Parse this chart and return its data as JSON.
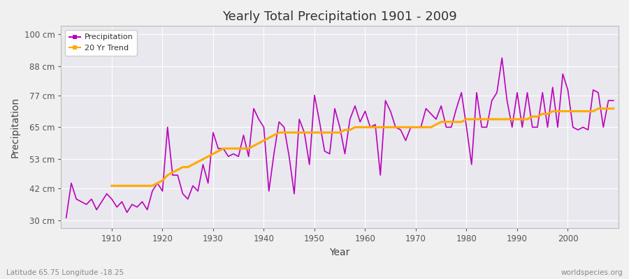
{
  "title": "Yearly Total Precipitation 1901 - 2009",
  "xlabel": "Year",
  "ylabel": "Precipitation",
  "subtitle_left": "Latitude 65.75 Longitude -18.25",
  "subtitle_right": "worldspecies.org",
  "ytick_labels": [
    "30 cm",
    "42 cm",
    "53 cm",
    "65 cm",
    "77 cm",
    "88 cm",
    "100 cm"
  ],
  "ytick_values": [
    30,
    42,
    53,
    65,
    77,
    88,
    100
  ],
  "ylim": [
    27,
    103
  ],
  "xlim": [
    1900,
    2010
  ],
  "precip_color": "#bb00bb",
  "trend_color": "#ffaa00",
  "fig_bg_color": "#f0f0f0",
  "plot_bg_color": "#e8e8ee",
  "grid_color": "#ffffff",
  "xticks": [
    1910,
    1920,
    1930,
    1940,
    1950,
    1960,
    1970,
    1980,
    1990,
    2000
  ],
  "years": [
    1901,
    1902,
    1903,
    1904,
    1905,
    1906,
    1907,
    1908,
    1909,
    1910,
    1911,
    1912,
    1913,
    1914,
    1915,
    1916,
    1917,
    1918,
    1919,
    1920,
    1921,
    1922,
    1923,
    1924,
    1925,
    1926,
    1927,
    1928,
    1929,
    1930,
    1931,
    1932,
    1933,
    1934,
    1935,
    1936,
    1937,
    1938,
    1939,
    1940,
    1941,
    1942,
    1943,
    1944,
    1945,
    1946,
    1947,
    1948,
    1949,
    1950,
    1951,
    1952,
    1953,
    1954,
    1955,
    1956,
    1957,
    1958,
    1959,
    1960,
    1961,
    1962,
    1963,
    1964,
    1965,
    1966,
    1967,
    1968,
    1969,
    1970,
    1971,
    1972,
    1973,
    1974,
    1975,
    1976,
    1977,
    1978,
    1979,
    1980,
    1981,
    1982,
    1983,
    1984,
    1985,
    1986,
    1987,
    1988,
    1989,
    1990,
    1991,
    1992,
    1993,
    1994,
    1995,
    1996,
    1997,
    1998,
    1999,
    2000,
    2001,
    2002,
    2003,
    2004,
    2005,
    2006,
    2007,
    2008,
    2009
  ],
  "precipitation": [
    31,
    44,
    38,
    37,
    36,
    38,
    34,
    37,
    40,
    38,
    35,
    37,
    33,
    36,
    35,
    37,
    34,
    41,
    44,
    41,
    65,
    47,
    47,
    40,
    38,
    43,
    41,
    51,
    44,
    63,
    57,
    57,
    54,
    55,
    54,
    62,
    54,
    72,
    68,
    65,
    41,
    55,
    67,
    65,
    54,
    40,
    68,
    63,
    51,
    77,
    67,
    56,
    55,
    72,
    65,
    55,
    68,
    73,
    67,
    71,
    65,
    66,
    47,
    75,
    71,
    65,
    64,
    60,
    65,
    65,
    65,
    72,
    70,
    68,
    73,
    65,
    65,
    72,
    78,
    65,
    51,
    78,
    65,
    65,
    75,
    78,
    91,
    75,
    65,
    78,
    65,
    78,
    65,
    65,
    78,
    65,
    80,
    65,
    85,
    79,
    65,
    64,
    65,
    64,
    79,
    78,
    65,
    75,
    75
  ],
  "trend": [
    null,
    null,
    null,
    null,
    null,
    null,
    null,
    null,
    null,
    43,
    43,
    43,
    43,
    43,
    43,
    43,
    43,
    43,
    44,
    45,
    47,
    48,
    49,
    50,
    50,
    51,
    52,
    53,
    54,
    55,
    56,
    57,
    57,
    57,
    57,
    57,
    57,
    58,
    59,
    60,
    61,
    62,
    63,
    63,
    63,
    63,
    63,
    63,
    63,
    63,
    63,
    63,
    63,
    63,
    63,
    64,
    64,
    65,
    65,
    65,
    65,
    65,
    65,
    65,
    65,
    65,
    65,
    65,
    65,
    65,
    65,
    65,
    65,
    66,
    67,
    67,
    67,
    67,
    67,
    68,
    68,
    68,
    68,
    68,
    68,
    68,
    68,
    68,
    68,
    68,
    68,
    68,
    69,
    69,
    70,
    70,
    71,
    71,
    71,
    71,
    71,
    71,
    71,
    71,
    71,
    72,
    72,
    72,
    72
  ]
}
